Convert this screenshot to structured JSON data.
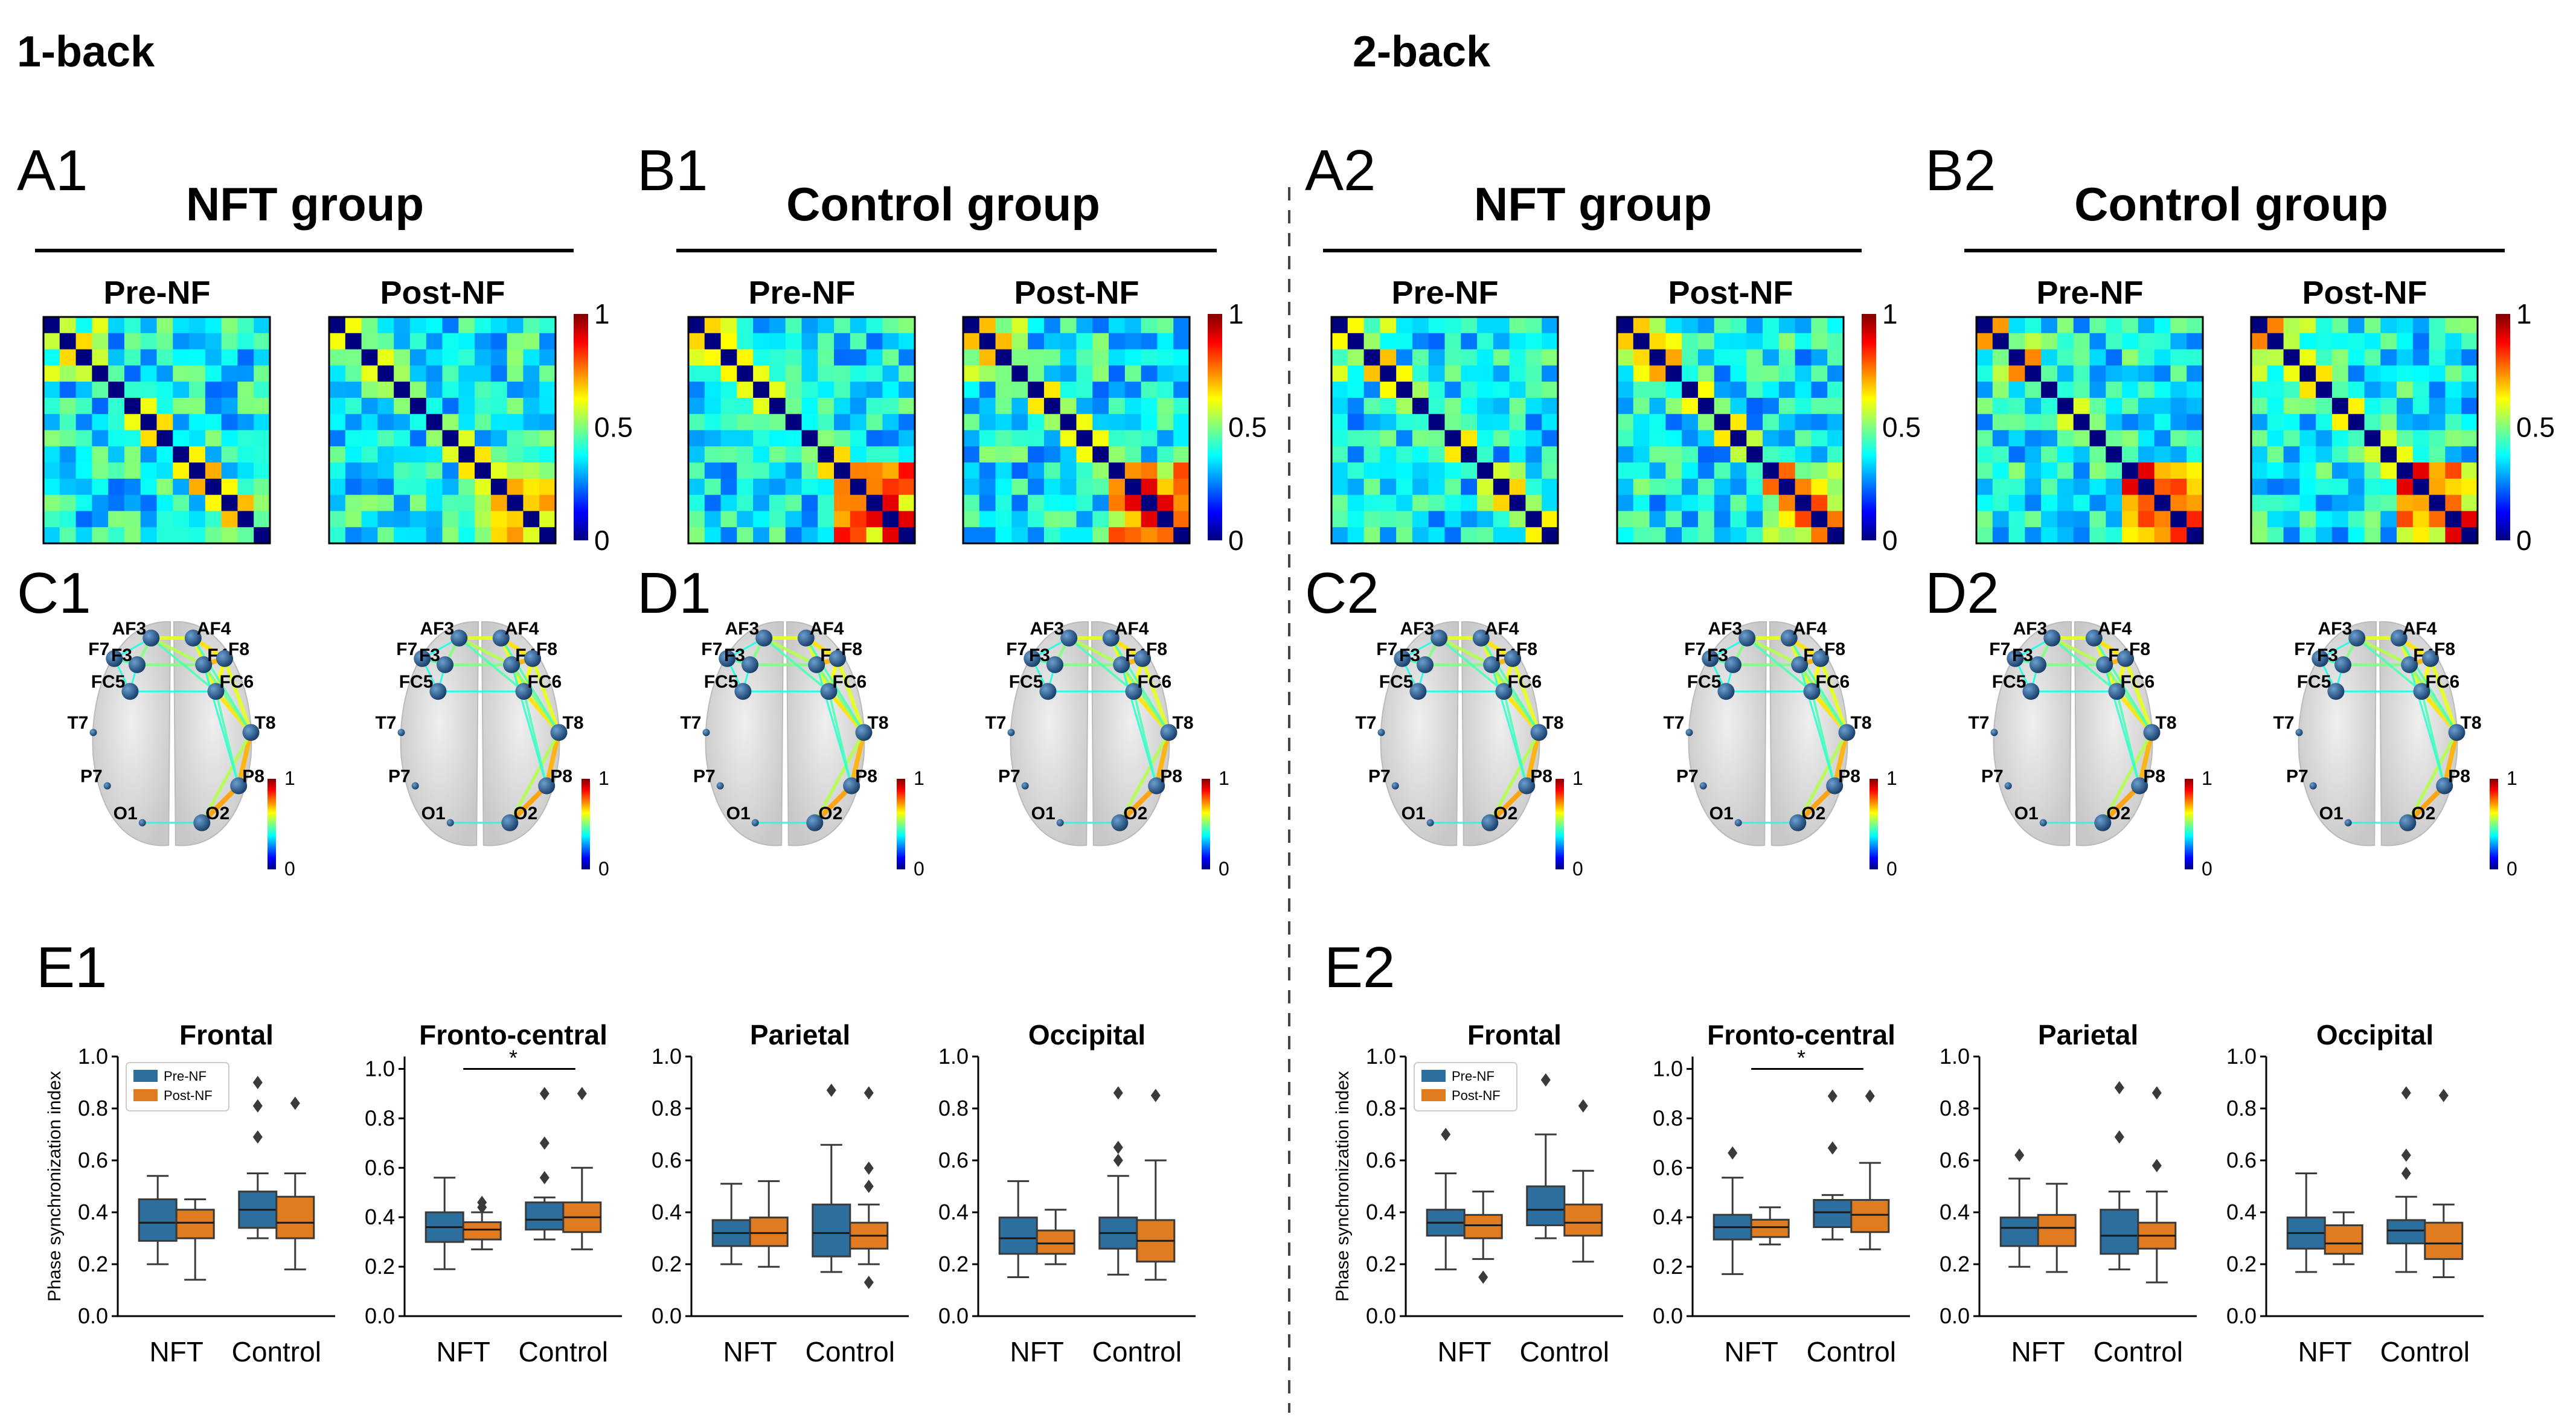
{
  "sections": [
    {
      "title": "1-back",
      "panels": {
        "A": "A1",
        "B": "B1",
        "C": "C1",
        "D": "D1",
        "E": "E1"
      }
    },
    {
      "title": "2-back",
      "panels": {
        "A": "A2",
        "B": "B2",
        "C": "C2",
        "D": "D2",
        "E": "E2"
      }
    }
  ],
  "groups": [
    "NFT group",
    "Control group"
  ],
  "matrix_titles": [
    "Pre-NF",
    "Post-NF"
  ],
  "colorbar": {
    "max": "1",
    "mid": "0.5",
    "min": "0"
  },
  "brain_colorbar": {
    "max": "1",
    "min": "0"
  },
  "electrodes": [
    "AF3",
    "AF4",
    "F7",
    "F3",
    "F4",
    "F8",
    "FC5",
    "FC6",
    "T7",
    "T8",
    "P7",
    "P8",
    "O1",
    "O2"
  ],
  "colors": {
    "pre": "#2c6e9e",
    "post": "#e07b1f",
    "median": "#1a1a1a",
    "edge": "#6ec0ac",
    "node": "#1e4b7e"
  },
  "chart_data": [
    {
      "type": "box",
      "panel": "E1",
      "title": "Frontal",
      "ylabel": "Phase synchronization index",
      "ylim": [
        0,
        1
      ],
      "yticks": [
        "0.0",
        "0.2",
        "0.4",
        "0.6",
        "0.8",
        "1.0"
      ],
      "categories": [
        "NFT",
        "Control"
      ],
      "legend": [
        "Pre-NF",
        "Post-NF"
      ],
      "boxes": [
        {
          "cat": 0,
          "series": "Pre-NF",
          "q1": 0.29,
          "median": 0.36,
          "q3": 0.45,
          "whislo": 0.2,
          "whishi": 0.54,
          "fliers": []
        },
        {
          "cat": 0,
          "series": "Post-NF",
          "q1": 0.3,
          "median": 0.36,
          "q3": 0.41,
          "whislo": 0.14,
          "whishi": 0.45,
          "fliers": []
        },
        {
          "cat": 1,
          "series": "Pre-NF",
          "q1": 0.34,
          "median": 0.41,
          "q3": 0.48,
          "whislo": 0.3,
          "whishi": 0.55,
          "fliers": [
            0.69,
            0.81,
            0.9
          ]
        },
        {
          "cat": 1,
          "series": "Post-NF",
          "q1": 0.3,
          "median": 0.36,
          "q3": 0.46,
          "whislo": 0.18,
          "whishi": 0.55,
          "fliers": [
            0.82
          ]
        }
      ]
    },
    {
      "type": "box",
      "panel": "E1",
      "title": "Fronto-central",
      "ylim": [
        0,
        1.05
      ],
      "yticks": [
        "0.0",
        "0.2",
        "0.4",
        "0.6",
        "0.8",
        "1.0"
      ],
      "categories": [
        "NFT",
        "Control"
      ],
      "significance": "*",
      "boxes": [
        {
          "cat": 0,
          "series": "Pre-NF",
          "q1": 0.3,
          "median": 0.36,
          "q3": 0.42,
          "whislo": 0.19,
          "whishi": 0.56,
          "fliers": []
        },
        {
          "cat": 0,
          "series": "Post-NF",
          "q1": 0.31,
          "median": 0.35,
          "q3": 0.38,
          "whislo": 0.27,
          "whishi": 0.42,
          "fliers": [
            0.44,
            0.46
          ]
        },
        {
          "cat": 1,
          "series": "Pre-NF",
          "q1": 0.35,
          "median": 0.39,
          "q3": 0.46,
          "whislo": 0.31,
          "whishi": 0.48,
          "fliers": [
            0.56,
            0.7,
            0.9
          ]
        },
        {
          "cat": 1,
          "series": "Post-NF",
          "q1": 0.34,
          "median": 0.4,
          "q3": 0.46,
          "whislo": 0.27,
          "whishi": 0.6,
          "fliers": [
            0.9
          ]
        }
      ]
    },
    {
      "type": "box",
      "panel": "E1",
      "title": "Parietal",
      "ylim": [
        0,
        1
      ],
      "yticks": [
        "0.0",
        "0.2",
        "0.4",
        "0.6",
        "0.8",
        "1.0"
      ],
      "categories": [
        "NFT",
        "Control"
      ],
      "boxes": [
        {
          "cat": 0,
          "series": "Pre-NF",
          "q1": 0.27,
          "median": 0.32,
          "q3": 0.37,
          "whislo": 0.2,
          "whishi": 0.51,
          "fliers": []
        },
        {
          "cat": 0,
          "series": "Post-NF",
          "q1": 0.27,
          "median": 0.32,
          "q3": 0.38,
          "whislo": 0.19,
          "whishi": 0.52,
          "fliers": []
        },
        {
          "cat": 1,
          "series": "Pre-NF",
          "q1": 0.23,
          "median": 0.32,
          "q3": 0.43,
          "whislo": 0.17,
          "whishi": 0.66,
          "fliers": [
            0.87
          ]
        },
        {
          "cat": 1,
          "series": "Post-NF",
          "q1": 0.26,
          "median": 0.31,
          "q3": 0.36,
          "whislo": 0.2,
          "whishi": 0.43,
          "fliers": [
            0.13,
            0.5,
            0.57,
            0.86
          ]
        }
      ]
    },
    {
      "type": "box",
      "panel": "E1",
      "title": "Occipital",
      "ylim": [
        0,
        1
      ],
      "yticks": [
        "0.0",
        "0.2",
        "0.4",
        "0.6",
        "0.8",
        "1.0"
      ],
      "categories": [
        "NFT",
        "Control"
      ],
      "boxes": [
        {
          "cat": 0,
          "series": "Pre-NF",
          "q1": 0.24,
          "median": 0.3,
          "q3": 0.38,
          "whislo": 0.15,
          "whishi": 0.52,
          "fliers": []
        },
        {
          "cat": 0,
          "series": "Post-NF",
          "q1": 0.24,
          "median": 0.28,
          "q3": 0.33,
          "whislo": 0.2,
          "whishi": 0.41,
          "fliers": []
        },
        {
          "cat": 1,
          "series": "Pre-NF",
          "q1": 0.26,
          "median": 0.32,
          "q3": 0.38,
          "whislo": 0.16,
          "whishi": 0.54,
          "fliers": [
            0.6,
            0.65,
            0.86
          ]
        },
        {
          "cat": 1,
          "series": "Post-NF",
          "q1": 0.21,
          "median": 0.29,
          "q3": 0.37,
          "whislo": 0.14,
          "whishi": 0.6,
          "fliers": [
            0.85
          ]
        }
      ]
    },
    {
      "type": "box",
      "panel": "E2",
      "title": "Frontal",
      "ylabel": "Phase synchronization index",
      "ylim": [
        0,
        1
      ],
      "yticks": [
        "0.0",
        "0.2",
        "0.4",
        "0.6",
        "0.8",
        "1.0"
      ],
      "categories": [
        "NFT",
        "Control"
      ],
      "legend": [
        "Pre-NF",
        "Post-NF"
      ],
      "boxes": [
        {
          "cat": 0,
          "series": "Pre-NF",
          "q1": 0.31,
          "median": 0.36,
          "q3": 0.41,
          "whislo": 0.18,
          "whishi": 0.55,
          "fliers": [
            0.7
          ]
        },
        {
          "cat": 0,
          "series": "Post-NF",
          "q1": 0.3,
          "median": 0.35,
          "q3": 0.39,
          "whislo": 0.22,
          "whishi": 0.48,
          "fliers": [
            0.15
          ]
        },
        {
          "cat": 1,
          "series": "Pre-NF",
          "q1": 0.35,
          "median": 0.41,
          "q3": 0.5,
          "whislo": 0.3,
          "whishi": 0.7,
          "fliers": [
            0.91
          ]
        },
        {
          "cat": 1,
          "series": "Post-NF",
          "q1": 0.31,
          "median": 0.36,
          "q3": 0.43,
          "whislo": 0.21,
          "whishi": 0.56,
          "fliers": [
            0.81
          ]
        }
      ]
    },
    {
      "type": "box",
      "panel": "E2",
      "title": "Fronto-central",
      "ylim": [
        0,
        1.05
      ],
      "yticks": [
        "0.0",
        "0.2",
        "0.4",
        "0.6",
        "0.8",
        "1.0"
      ],
      "categories": [
        "NFT",
        "Control"
      ],
      "significance": "*",
      "boxes": [
        {
          "cat": 0,
          "series": "Pre-NF",
          "q1": 0.31,
          "median": 0.36,
          "q3": 0.41,
          "whislo": 0.17,
          "whishi": 0.56,
          "fliers": [
            0.66
          ]
        },
        {
          "cat": 0,
          "series": "Post-NF",
          "q1": 0.32,
          "median": 0.36,
          "q3": 0.39,
          "whislo": 0.29,
          "whishi": 0.44,
          "fliers": []
        },
        {
          "cat": 1,
          "series": "Pre-NF",
          "q1": 0.36,
          "median": 0.42,
          "q3": 0.47,
          "whislo": 0.31,
          "whishi": 0.49,
          "fliers": [
            0.68,
            0.89
          ]
        },
        {
          "cat": 1,
          "series": "Post-NF",
          "q1": 0.34,
          "median": 0.41,
          "q3": 0.47,
          "whislo": 0.27,
          "whishi": 0.62,
          "fliers": [
            0.89
          ]
        }
      ]
    },
    {
      "type": "box",
      "panel": "E2",
      "title": "Parietal",
      "ylim": [
        0,
        1
      ],
      "yticks": [
        "0.0",
        "0.2",
        "0.4",
        "0.6",
        "0.8",
        "1.0"
      ],
      "categories": [
        "NFT",
        "Control"
      ],
      "boxes": [
        {
          "cat": 0,
          "series": "Pre-NF",
          "q1": 0.27,
          "median": 0.34,
          "q3": 0.38,
          "whislo": 0.19,
          "whishi": 0.53,
          "fliers": [
            0.62
          ]
        },
        {
          "cat": 0,
          "series": "Post-NF",
          "q1": 0.27,
          "median": 0.34,
          "q3": 0.39,
          "whislo": 0.17,
          "whishi": 0.51,
          "fliers": []
        },
        {
          "cat": 1,
          "series": "Pre-NF",
          "q1": 0.24,
          "median": 0.31,
          "q3": 0.41,
          "whislo": 0.18,
          "whishi": 0.48,
          "fliers": [
            0.69,
            0.88
          ]
        },
        {
          "cat": 1,
          "series": "Post-NF",
          "q1": 0.26,
          "median": 0.31,
          "q3": 0.36,
          "whislo": 0.13,
          "whishi": 0.48,
          "fliers": [
            0.58,
            0.86
          ]
        }
      ]
    },
    {
      "type": "box",
      "panel": "E2",
      "title": "Occipital",
      "ylim": [
        0,
        1
      ],
      "yticks": [
        "0.0",
        "0.2",
        "0.4",
        "0.6",
        "0.8",
        "1.0"
      ],
      "categories": [
        "NFT",
        "Control"
      ],
      "boxes": [
        {
          "cat": 0,
          "series": "Pre-NF",
          "q1": 0.26,
          "median": 0.32,
          "q3": 0.38,
          "whislo": 0.17,
          "whishi": 0.55,
          "fliers": []
        },
        {
          "cat": 0,
          "series": "Post-NF",
          "q1": 0.24,
          "median": 0.28,
          "q3": 0.35,
          "whislo": 0.2,
          "whishi": 0.4,
          "fliers": []
        },
        {
          "cat": 1,
          "series": "Pre-NF",
          "q1": 0.28,
          "median": 0.33,
          "q3": 0.37,
          "whislo": 0.17,
          "whishi": 0.46,
          "fliers": [
            0.55,
            0.62,
            0.86
          ]
        },
        {
          "cat": 1,
          "series": "Post-NF",
          "q1": 0.22,
          "median": 0.28,
          "q3": 0.36,
          "whislo": 0.15,
          "whishi": 0.43,
          "fliers": [
            0.85
          ]
        }
      ]
    }
  ]
}
